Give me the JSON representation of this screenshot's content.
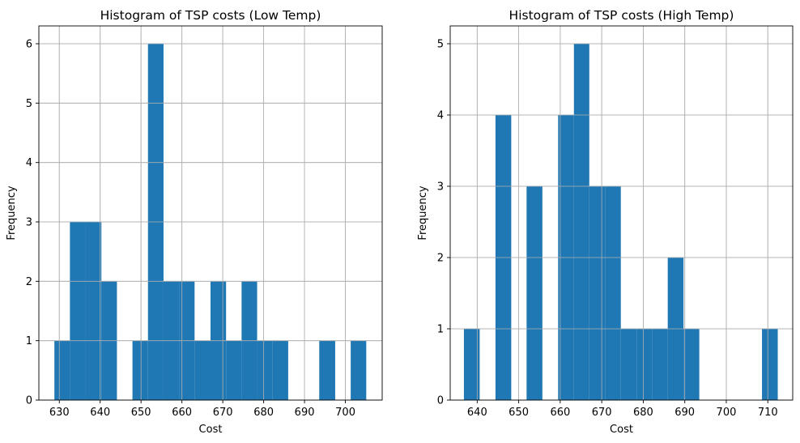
{
  "chart_data": [
    {
      "type": "bar",
      "title": "Histogram of TSP costs (Low Temp)",
      "xlabel": "Cost",
      "ylabel": "Frequency",
      "xlim": [
        625,
        709
      ],
      "ylim": [
        0,
        6.3
      ],
      "grid": true,
      "bar_color": "#1f77b4",
      "xticks": [
        630,
        640,
        650,
        660,
        670,
        680,
        690,
        700
      ],
      "yticks": [
        0,
        1,
        2,
        3,
        4,
        5,
        6
      ],
      "bins": [
        {
          "x0": 628.8,
          "x1": 632.6,
          "count": 1
        },
        {
          "x0": 632.6,
          "x1": 636.4,
          "count": 3
        },
        {
          "x0": 636.4,
          "x1": 640.3,
          "count": 3
        },
        {
          "x0": 640.3,
          "x1": 644.1,
          "count": 2
        },
        {
          "x0": 644.1,
          "x1": 647.9,
          "count": 0
        },
        {
          "x0": 647.9,
          "x1": 651.7,
          "count": 1
        },
        {
          "x0": 651.7,
          "x1": 655.5,
          "count": 6
        },
        {
          "x0": 655.5,
          "x1": 659.3,
          "count": 2
        },
        {
          "x0": 659.3,
          "x1": 663.1,
          "count": 2
        },
        {
          "x0": 663.1,
          "x1": 667.0,
          "count": 1
        },
        {
          "x0": 667.0,
          "x1": 670.8,
          "count": 2
        },
        {
          "x0": 670.8,
          "x1": 674.6,
          "count": 1
        },
        {
          "x0": 674.6,
          "x1": 678.4,
          "count": 2
        },
        {
          "x0": 678.4,
          "x1": 682.2,
          "count": 1
        },
        {
          "x0": 682.2,
          "x1": 686.0,
          "count": 1
        },
        {
          "x0": 686.0,
          "x1": 689.8,
          "count": 0
        },
        {
          "x0": 689.8,
          "x1": 693.6,
          "count": 0
        },
        {
          "x0": 693.6,
          "x1": 697.5,
          "count": 1
        },
        {
          "x0": 697.5,
          "x1": 701.3,
          "count": 0
        },
        {
          "x0": 701.3,
          "x1": 705.1,
          "count": 1
        }
      ]
    },
    {
      "type": "bar",
      "title": "Histogram of TSP costs (High Temp)",
      "xlabel": "Cost",
      "ylabel": "Frequency",
      "xlim": [
        633.5,
        716
      ],
      "ylim": [
        0,
        5.25
      ],
      "grid": true,
      "bar_color": "#1f77b4",
      "xticks": [
        640,
        650,
        660,
        670,
        680,
        690,
        700,
        710
      ],
      "yticks": [
        0,
        1,
        2,
        3,
        4,
        5
      ],
      "bins": [
        {
          "x0": 636.8,
          "x1": 640.6,
          "count": 1
        },
        {
          "x0": 640.6,
          "x1": 644.4,
          "count": 0
        },
        {
          "x0": 644.4,
          "x1": 648.2,
          "count": 4
        },
        {
          "x0": 648.2,
          "x1": 651.9,
          "count": 0
        },
        {
          "x0": 651.9,
          "x1": 655.7,
          "count": 3
        },
        {
          "x0": 655.7,
          "x1": 659.5,
          "count": 0
        },
        {
          "x0": 659.5,
          "x1": 663.3,
          "count": 4
        },
        {
          "x0": 663.3,
          "x1": 667.0,
          "count": 5
        },
        {
          "x0": 667.0,
          "x1": 670.8,
          "count": 3
        },
        {
          "x0": 670.8,
          "x1": 674.6,
          "count": 3
        },
        {
          "x0": 674.6,
          "x1": 678.4,
          "count": 1
        },
        {
          "x0": 678.4,
          "x1": 682.2,
          "count": 1
        },
        {
          "x0": 682.2,
          "x1": 685.9,
          "count": 1
        },
        {
          "x0": 685.9,
          "x1": 689.7,
          "count": 2
        },
        {
          "x0": 689.7,
          "x1": 693.5,
          "count": 1
        },
        {
          "x0": 693.5,
          "x1": 697.3,
          "count": 0
        },
        {
          "x0": 697.3,
          "x1": 701.1,
          "count": 0
        },
        {
          "x0": 701.1,
          "x1": 704.8,
          "count": 0
        },
        {
          "x0": 704.8,
          "x1": 708.6,
          "count": 0
        },
        {
          "x0": 708.6,
          "x1": 712.4,
          "count": 1
        }
      ]
    }
  ]
}
